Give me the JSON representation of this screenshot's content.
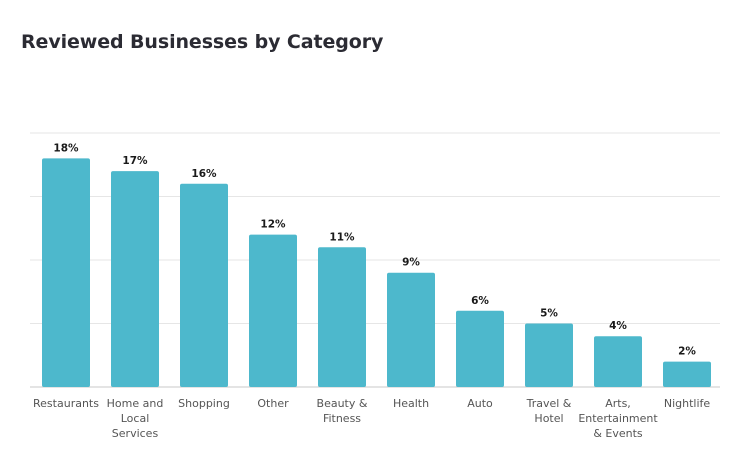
{
  "title": "Reviewed Businesses by Category",
  "colors": {
    "bar": "#4db8cc",
    "title": "#2b2b33"
  },
  "chart_data": {
    "type": "bar",
    "title": "Reviewed Businesses by Category",
    "xlabel": "",
    "ylabel": "",
    "ylim": [
      0,
      20
    ],
    "grid": true,
    "legend": "none",
    "categories": [
      "Restaurants",
      "Home and Local Services",
      "Shopping",
      "Other",
      "Beauty & Fitness",
      "Health",
      "Auto",
      "Travel & Hotel",
      "Arts, Entertainment & Events",
      "Nightlife"
    ],
    "category_label_lines": [
      [
        "Restaurants"
      ],
      [
        "Home and",
        "Local",
        "Services"
      ],
      [
        "Shopping"
      ],
      [
        "Other"
      ],
      [
        "Beauty &",
        "Fitness"
      ],
      [
        "Health"
      ],
      [
        "Auto"
      ],
      [
        "Travel &",
        "Hotel"
      ],
      [
        "Arts,",
        "Entertainment",
        "& Events"
      ],
      [
        "Nightlife"
      ]
    ],
    "values": [
      18,
      17,
      16,
      12,
      11,
      9,
      6,
      5,
      4,
      2
    ],
    "data_labels": [
      "18%",
      "17%",
      "16%",
      "12%",
      "11%",
      "9%",
      "6%",
      "5%",
      "4%",
      "2%"
    ]
  }
}
